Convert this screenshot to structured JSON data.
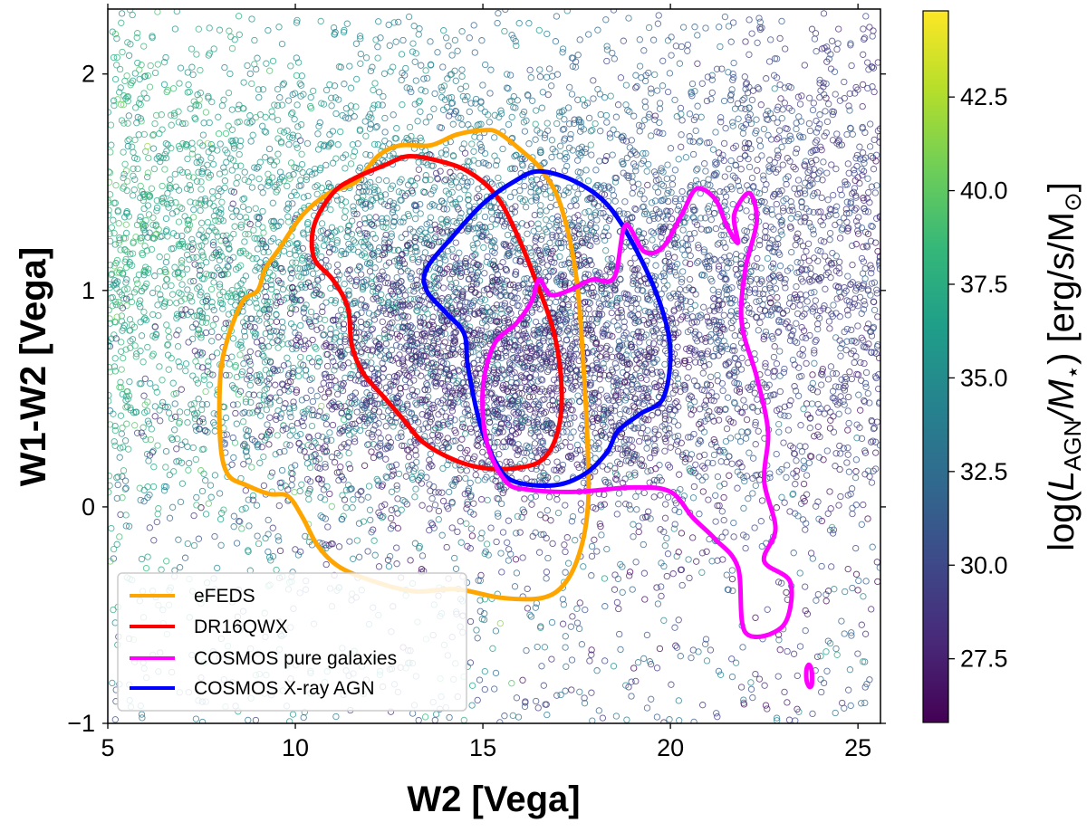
{
  "chart_data": {
    "type": "scatter",
    "xlabel": "W2 [Vega]",
    "ylabel": "W1-W2 [Vega]",
    "xlim": [
      5,
      25.6
    ],
    "ylim": [
      -1,
      2.3
    ],
    "xticks": [
      5,
      10,
      15,
      20,
      25
    ],
    "xtick_labels": [
      "5",
      "10",
      "15",
      "20",
      "25"
    ],
    "yticks": [
      -1,
      0,
      1,
      2
    ],
    "ytick_labels": [
      "−1",
      "0",
      "1",
      "2"
    ],
    "colorbar": {
      "label": "log(L_AGN/M_⋆) [erg/s/M_⊙]",
      "label_parts": {
        "prefix": "log(",
        "L": "L",
        "sub1": "AGN",
        "slash": "/M",
        "sub2": "⋆",
        "unit": ") [erg/s/M",
        "sub3": "⊙",
        "close": "]"
      },
      "range": [
        25.8,
        44.8
      ],
      "ticks": [
        27.5,
        30.0,
        32.5,
        35.0,
        37.5,
        40.0,
        42.5
      ],
      "tick_labels": [
        "27.5",
        "30.0",
        "32.5",
        "35.0",
        "37.5",
        "40.0",
        "42.5"
      ],
      "colormap": "viridis",
      "stops": [
        "#440154",
        "#482878",
        "#3e4989",
        "#31688e",
        "#26828e",
        "#1f9e89",
        "#35b779",
        "#6ece58",
        "#b5de2b",
        "#fde725"
      ]
    },
    "background_scatter": {
      "description": "dense cloud of open circles colored by log(L_AGN/M*)",
      "marker": "open-circle"
    },
    "legend": {
      "location": "lower-left",
      "entries": [
        {
          "label": "eFEDS",
          "color": "#ffa500"
        },
        {
          "label": "DR16QWX",
          "color": "#ff0000"
        },
        {
          "label": "COSMOS pure galaxies",
          "color": "#ff00ff"
        },
        {
          "label": "COSMOS X-ray AGN",
          "color": "#0000ff"
        }
      ]
    },
    "series": [
      {
        "name": "eFEDS",
        "type": "contour",
        "color": "#ffa500",
        "points": [
          [
            15.0,
            1.74
          ],
          [
            15.4,
            1.73
          ],
          [
            16.0,
            1.65
          ],
          [
            16.6,
            1.55
          ],
          [
            17.1,
            1.38
          ],
          [
            17.5,
            1.05
          ],
          [
            17.7,
            0.6
          ],
          [
            17.8,
            0.25
          ],
          [
            17.8,
            0.0
          ],
          [
            17.6,
            -0.2
          ],
          [
            17.2,
            -0.35
          ],
          [
            16.6,
            -0.42
          ],
          [
            15.5,
            -0.42
          ],
          [
            14.3,
            -0.38
          ],
          [
            13.2,
            -0.39
          ],
          [
            12.2,
            -0.35
          ],
          [
            11.2,
            -0.28
          ],
          [
            10.6,
            -0.18
          ],
          [
            10.2,
            -0.05
          ],
          [
            9.8,
            0.05
          ],
          [
            9.3,
            0.06
          ],
          [
            8.7,
            0.1
          ],
          [
            8.2,
            0.15
          ],
          [
            8.0,
            0.3
          ],
          [
            8.0,
            0.6
          ],
          [
            8.2,
            0.78
          ],
          [
            8.6,
            0.95
          ],
          [
            9.0,
            1.0
          ],
          [
            9.2,
            1.1
          ],
          [
            9.6,
            1.2
          ],
          [
            10.2,
            1.35
          ],
          [
            10.9,
            1.45
          ],
          [
            11.6,
            1.5
          ],
          [
            12.2,
            1.62
          ],
          [
            12.8,
            1.67
          ],
          [
            13.6,
            1.67
          ],
          [
            14.3,
            1.72
          ],
          [
            15.0,
            1.74
          ]
        ]
      },
      {
        "name": "DR16QWX",
        "type": "contour",
        "color": "#ff0000",
        "points": [
          [
            13.0,
            1.62
          ],
          [
            13.8,
            1.6
          ],
          [
            14.6,
            1.55
          ],
          [
            15.3,
            1.45
          ],
          [
            15.8,
            1.3
          ],
          [
            16.4,
            1.05
          ],
          [
            16.9,
            0.8
          ],
          [
            17.1,
            0.55
          ],
          [
            17.0,
            0.35
          ],
          [
            16.6,
            0.22
          ],
          [
            15.9,
            0.18
          ],
          [
            15.0,
            0.18
          ],
          [
            14.2,
            0.22
          ],
          [
            13.4,
            0.3
          ],
          [
            12.9,
            0.4
          ],
          [
            12.4,
            0.5
          ],
          [
            11.8,
            0.62
          ],
          [
            11.5,
            0.75
          ],
          [
            11.4,
            0.92
          ],
          [
            11.0,
            1.05
          ],
          [
            10.5,
            1.15
          ],
          [
            10.5,
            1.3
          ],
          [
            11.0,
            1.45
          ],
          [
            11.6,
            1.52
          ],
          [
            12.4,
            1.58
          ],
          [
            13.0,
            1.62
          ]
        ]
      },
      {
        "name": "COSMOS X-ray AGN",
        "type": "contour",
        "color": "#0000ff",
        "points": [
          [
            16.5,
            1.55
          ],
          [
            17.5,
            1.5
          ],
          [
            18.4,
            1.38
          ],
          [
            19.2,
            1.15
          ],
          [
            19.8,
            0.9
          ],
          [
            20.0,
            0.7
          ],
          [
            19.8,
            0.5
          ],
          [
            19.2,
            0.43
          ],
          [
            18.6,
            0.35
          ],
          [
            18.3,
            0.25
          ],
          [
            17.7,
            0.15
          ],
          [
            16.9,
            0.1
          ],
          [
            15.8,
            0.12
          ],
          [
            15.3,
            0.22
          ],
          [
            14.9,
            0.4
          ],
          [
            14.6,
            0.65
          ],
          [
            14.5,
            0.8
          ],
          [
            14.0,
            0.9
          ],
          [
            13.5,
            1.0
          ],
          [
            13.5,
            1.1
          ],
          [
            14.2,
            1.25
          ],
          [
            15.0,
            1.4
          ],
          [
            15.8,
            1.5
          ],
          [
            16.5,
            1.55
          ]
        ]
      },
      {
        "name": "COSMOS pure galaxies",
        "type": "contour",
        "color": "#ff00ff",
        "points": [
          [
            16.5,
            1.05
          ],
          [
            16.8,
            0.98
          ],
          [
            17.3,
            1.0
          ],
          [
            17.9,
            1.05
          ],
          [
            18.5,
            1.06
          ],
          [
            18.8,
            1.3
          ],
          [
            19.3,
            1.18
          ],
          [
            19.8,
            1.2
          ],
          [
            20.3,
            1.35
          ],
          [
            20.7,
            1.47
          ],
          [
            21.2,
            1.42
          ],
          [
            21.5,
            1.3
          ],
          [
            21.8,
            1.22
          ],
          [
            21.7,
            1.35
          ],
          [
            22.1,
            1.45
          ],
          [
            22.3,
            1.32
          ],
          [
            22.0,
            1.1
          ],
          [
            21.9,
            0.85
          ],
          [
            22.3,
            0.6
          ],
          [
            22.6,
            0.35
          ],
          [
            22.5,
            0.12
          ],
          [
            22.8,
            -0.1
          ],
          [
            22.5,
            -0.25
          ],
          [
            23.2,
            -0.35
          ],
          [
            23.0,
            -0.55
          ],
          [
            22.0,
            -0.58
          ],
          [
            21.8,
            -0.28
          ],
          [
            21.2,
            -0.15
          ],
          [
            20.6,
            -0.05
          ],
          [
            20.0,
            0.07
          ],
          [
            19.0,
            0.09
          ],
          [
            17.5,
            0.07
          ],
          [
            16.2,
            0.08
          ],
          [
            15.6,
            0.12
          ],
          [
            15.1,
            0.3
          ],
          [
            15.0,
            0.55
          ],
          [
            15.3,
            0.75
          ],
          [
            15.9,
            0.85
          ],
          [
            16.3,
            0.95
          ],
          [
            16.5,
            1.05
          ]
        ]
      },
      {
        "name": "COSMOS pure galaxies",
        "type": "contour-island",
        "color": "#ff00ff",
        "points": [
          [
            23.7,
            -0.73
          ],
          [
            23.77,
            -0.76
          ],
          [
            23.77,
            -0.82
          ],
          [
            23.7,
            -0.83
          ],
          [
            23.63,
            -0.8
          ],
          [
            23.63,
            -0.75
          ],
          [
            23.7,
            -0.73
          ]
        ]
      }
    ]
  }
}
